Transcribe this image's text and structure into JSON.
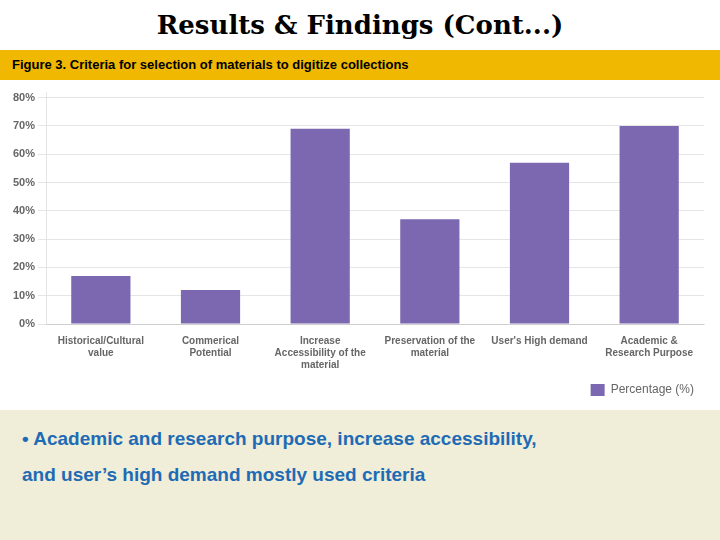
{
  "chart_data": {
    "type": "bar",
    "title": "Results & Findings (Cont...)",
    "subtitle": "Figure 3. Criteria  for selection of materials to digitize collections",
    "categories": [
      "Historical/Cultural\nvalue",
      "Commerical\nPotential",
      "Increase\nAccessibility of the\nmaterial",
      "Preservation of the\nmaterial",
      "User's High demand",
      "Academic &\nResearch Purpose"
    ],
    "series": [
      {
        "name": "Percentage (%)",
        "color": "#7B68B0",
        "values": [
          17,
          12,
          69,
          37,
          57,
          70
        ]
      }
    ],
    "ylim": [
      0,
      82
    ],
    "yticks": [
      {
        "value": 0,
        "label": "0%"
      },
      {
        "value": 10,
        "label": "10%"
      },
      {
        "value": 20,
        "label": "20%"
      },
      {
        "value": 30,
        "label": "30%"
      },
      {
        "value": 40,
        "label": "40%"
      },
      {
        "value": 50,
        "label": "50%"
      },
      {
        "value": 60,
        "label": "60%"
      },
      {
        "value": 70,
        "label": "70%"
      },
      {
        "value": 80,
        "label": "80%"
      }
    ],
    "grid": true,
    "legend": "lower right",
    "annotations": [
      "• Academic and research purpose, increase accessibility,",
      "and user’s high demand mostly used criteria"
    ]
  }
}
